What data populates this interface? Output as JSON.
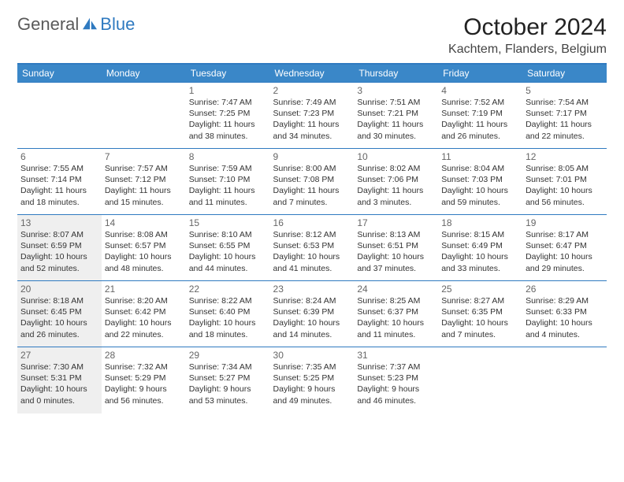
{
  "logo": {
    "text1": "General",
    "text2": "Blue"
  },
  "title": "October 2024",
  "location": "Kachtem, Flanders, Belgium",
  "colors": {
    "header_bg": "#3a87c8",
    "header_text": "#ffffff",
    "border": "#2f7ac0",
    "shade": "#efefef",
    "daynum": "#666666",
    "body_text": "#333333"
  },
  "columns": [
    "Sunday",
    "Monday",
    "Tuesday",
    "Wednesday",
    "Thursday",
    "Friday",
    "Saturday"
  ],
  "weeks": [
    [
      null,
      null,
      {
        "d": "1",
        "sr": "7:47 AM",
        "ss": "7:25 PM",
        "dl": "11 hours and 38 minutes."
      },
      {
        "d": "2",
        "sr": "7:49 AM",
        "ss": "7:23 PM",
        "dl": "11 hours and 34 minutes."
      },
      {
        "d": "3",
        "sr": "7:51 AM",
        "ss": "7:21 PM",
        "dl": "11 hours and 30 minutes."
      },
      {
        "d": "4",
        "sr": "7:52 AM",
        "ss": "7:19 PM",
        "dl": "11 hours and 26 minutes."
      },
      {
        "d": "5",
        "sr": "7:54 AM",
        "ss": "7:17 PM",
        "dl": "11 hours and 22 minutes."
      }
    ],
    [
      {
        "d": "6",
        "sr": "7:55 AM",
        "ss": "7:14 PM",
        "dl": "11 hours and 18 minutes."
      },
      {
        "d": "7",
        "sr": "7:57 AM",
        "ss": "7:12 PM",
        "dl": "11 hours and 15 minutes."
      },
      {
        "d": "8",
        "sr": "7:59 AM",
        "ss": "7:10 PM",
        "dl": "11 hours and 11 minutes."
      },
      {
        "d": "9",
        "sr": "8:00 AM",
        "ss": "7:08 PM",
        "dl": "11 hours and 7 minutes."
      },
      {
        "d": "10",
        "sr": "8:02 AM",
        "ss": "7:06 PM",
        "dl": "11 hours and 3 minutes."
      },
      {
        "d": "11",
        "sr": "8:04 AM",
        "ss": "7:03 PM",
        "dl": "10 hours and 59 minutes."
      },
      {
        "d": "12",
        "sr": "8:05 AM",
        "ss": "7:01 PM",
        "dl": "10 hours and 56 minutes."
      }
    ],
    [
      {
        "d": "13",
        "sr": "8:07 AM",
        "ss": "6:59 PM",
        "dl": "10 hours and 52 minutes.",
        "shade": true
      },
      {
        "d": "14",
        "sr": "8:08 AM",
        "ss": "6:57 PM",
        "dl": "10 hours and 48 minutes."
      },
      {
        "d": "15",
        "sr": "8:10 AM",
        "ss": "6:55 PM",
        "dl": "10 hours and 44 minutes."
      },
      {
        "d": "16",
        "sr": "8:12 AM",
        "ss": "6:53 PM",
        "dl": "10 hours and 41 minutes."
      },
      {
        "d": "17",
        "sr": "8:13 AM",
        "ss": "6:51 PM",
        "dl": "10 hours and 37 minutes."
      },
      {
        "d": "18",
        "sr": "8:15 AM",
        "ss": "6:49 PM",
        "dl": "10 hours and 33 minutes."
      },
      {
        "d": "19",
        "sr": "8:17 AM",
        "ss": "6:47 PM",
        "dl": "10 hours and 29 minutes."
      }
    ],
    [
      {
        "d": "20",
        "sr": "8:18 AM",
        "ss": "6:45 PM",
        "dl": "10 hours and 26 minutes.",
        "shade": true
      },
      {
        "d": "21",
        "sr": "8:20 AM",
        "ss": "6:42 PM",
        "dl": "10 hours and 22 minutes."
      },
      {
        "d": "22",
        "sr": "8:22 AM",
        "ss": "6:40 PM",
        "dl": "10 hours and 18 minutes."
      },
      {
        "d": "23",
        "sr": "8:24 AM",
        "ss": "6:39 PM",
        "dl": "10 hours and 14 minutes."
      },
      {
        "d": "24",
        "sr": "8:25 AM",
        "ss": "6:37 PM",
        "dl": "10 hours and 11 minutes."
      },
      {
        "d": "25",
        "sr": "8:27 AM",
        "ss": "6:35 PM",
        "dl": "10 hours and 7 minutes."
      },
      {
        "d": "26",
        "sr": "8:29 AM",
        "ss": "6:33 PM",
        "dl": "10 hours and 4 minutes."
      }
    ],
    [
      {
        "d": "27",
        "sr": "7:30 AM",
        "ss": "5:31 PM",
        "dl": "10 hours and 0 minutes.",
        "shade": true
      },
      {
        "d": "28",
        "sr": "7:32 AM",
        "ss": "5:29 PM",
        "dl": "9 hours and 56 minutes."
      },
      {
        "d": "29",
        "sr": "7:34 AM",
        "ss": "5:27 PM",
        "dl": "9 hours and 53 minutes."
      },
      {
        "d": "30",
        "sr": "7:35 AM",
        "ss": "5:25 PM",
        "dl": "9 hours and 49 minutes."
      },
      {
        "d": "31",
        "sr": "7:37 AM",
        "ss": "5:23 PM",
        "dl": "9 hours and 46 minutes."
      },
      null,
      null
    ]
  ],
  "labels": {
    "sunrise": "Sunrise:",
    "sunset": "Sunset:",
    "daylight": "Daylight:"
  }
}
